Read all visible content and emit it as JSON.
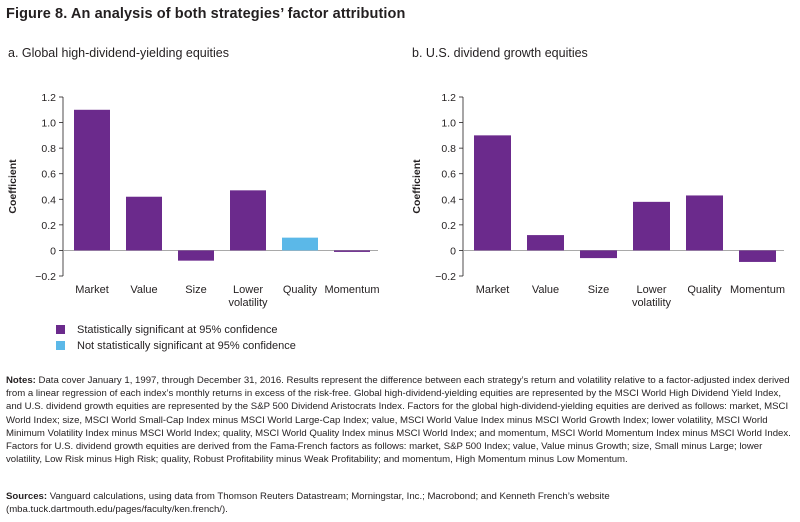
{
  "figure": {
    "title": "Figure 8. An analysis of both strategies’ factor attribution"
  },
  "legend": {
    "significant": {
      "label": "Statistically significant at 95% confidence",
      "color": "#6b2a8c"
    },
    "not_significant": {
      "label": "Not statistically significant at 95% confidence",
      "color": "#5bb8e8"
    }
  },
  "chart_data": [
    {
      "type": "bar",
      "title": "a. Global high-dividend-yielding equities",
      "xlabel": "",
      "ylabel": "Coefficient",
      "ylim": [
        -0.2,
        1.2
      ],
      "yticks": [
        "1.2",
        "1.0",
        "0.8",
        "0.6",
        "0.4",
        "0.2",
        "0",
        "−0.2"
      ],
      "categories": [
        "Market",
        "Value",
        "Size",
        "Lower volatility",
        "Quality",
        "Momentum"
      ],
      "tick_labels": [
        [
          "Market"
        ],
        [
          "Value"
        ],
        [
          "Size"
        ],
        [
          "Lower",
          "volatility"
        ],
        [
          "Quality"
        ],
        [
          "Momentum"
        ]
      ],
      "values": [
        1.1,
        0.42,
        -0.08,
        0.47,
        0.1,
        -0.01
      ],
      "significant": [
        true,
        true,
        true,
        true,
        false,
        true
      ]
    },
    {
      "type": "bar",
      "title": "b. U.S. dividend growth equities",
      "xlabel": "",
      "ylabel": "Coefficient",
      "ylim": [
        -0.2,
        1.2
      ],
      "yticks": [
        "1.2",
        "1.0",
        "0.8",
        "0.6",
        "0.4",
        "0.2",
        "0",
        "−0.2"
      ],
      "categories": [
        "Market",
        "Value",
        "Size",
        "Lower volatility",
        "Quality",
        "Momentum"
      ],
      "tick_labels": [
        [
          "Market"
        ],
        [
          "Value"
        ],
        [
          "Size"
        ],
        [
          "Lower",
          "volatility"
        ],
        [
          "Quality"
        ],
        [
          "Momentum"
        ]
      ],
      "values": [
        0.9,
        0.12,
        -0.06,
        0.38,
        0.43,
        -0.09
      ],
      "significant": [
        true,
        true,
        true,
        true,
        true,
        true
      ]
    }
  ],
  "notes": {
    "label": "Notes:",
    "text": " Data cover January 1, 1997, through December 31, 2016. Results represent the difference between each strategy’s return and volatility relative to a factor-adjusted index derived from a linear regression of each index’s monthly returns in excess of the risk-free. Global high-dividend-yielding equities are represented by the MSCI World High Dividend Yield Index, and U.S. dividend growth equities are represented by the S&P 500 Dividend Aristocrats Index. Factors for the global high-dividend-yielding equities are derived as follows: market, MSCI World Index; size, MSCI World Small-Cap Index minus MSCI World Large-Cap Index; value, MSCI World Value Index minus MSCI World Growth Index; lower volatility, MSCI World Minimum Volatility Index minus MSCI World Index; quality, MSCI World Quality Index minus MSCI World Index; and momentum, MSCI World Momentum Index minus MSCI World Index. Factors for U.S. dividend growth equities are derived from the Fama-French factors as follows: market, S&P 500 Index; value, Value minus Growth; size, Small minus Large; lower volatility, Low Risk minus High Risk; quality, Robust Profitability minus Weak Profitability; and momentum, High Momentum minus Low Momentum."
  },
  "sources": {
    "label": "Sources:",
    "text": " Vanguard calculations, using data from Thomson Reuters Datastream; Morningstar, Inc.; Macrobond; and Kenneth French’s website (mba.tuck.dartmouth.edu/pages/faculty/ken.french/)."
  }
}
